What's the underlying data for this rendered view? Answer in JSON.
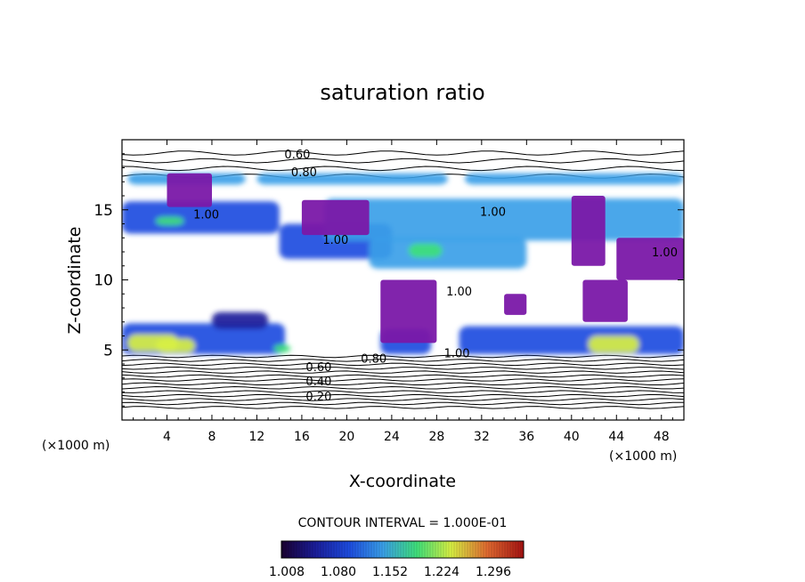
{
  "chart_data": {
    "type": "heatmap",
    "title": "saturation ratio",
    "xlabel": "X-coordinate",
    "ylabel": "Z-coordinate",
    "x_unit": "(×1000 m)",
    "z_unit": "(×1000 m)",
    "xlim": [
      0,
      50
    ],
    "ylim": [
      0,
      20
    ],
    "x_ticks": [
      4,
      8,
      12,
      16,
      20,
      24,
      28,
      32,
      36,
      40,
      44,
      48
    ],
    "y_ticks": [
      5,
      10,
      15
    ],
    "contour_interval_label": "CONTOUR INTERVAL = 1.000E-01",
    "colorbar": {
      "ticks": [
        "1.008",
        "1.080",
        "1.152",
        "1.224",
        "1.296"
      ],
      "range": [
        1.0,
        1.3
      ],
      "colors": [
        "#1a0030",
        "#1b1d9a",
        "#1d4ce0",
        "#3aa0e8",
        "#3fe07a",
        "#d8f043",
        "#e06a30",
        "#a51212"
      ]
    },
    "contour_labels": [
      {
        "text": "0.60",
        "x": 15.6,
        "z": 19.0
      },
      {
        "text": "0.80",
        "x": 16.2,
        "z": 17.7
      },
      {
        "text": "1.00",
        "x": 7.5,
        "z": 14.7
      },
      {
        "text": "1.00",
        "x": 19.0,
        "z": 12.9
      },
      {
        "text": "1.00",
        "x": 33.0,
        "z": 14.9
      },
      {
        "text": "1.00",
        "x": 48.3,
        "z": 12.0
      },
      {
        "text": "1.00",
        "x": 30.0,
        "z": 9.2
      },
      {
        "text": "1.00",
        "x": 29.8,
        "z": 4.8
      },
      {
        "text": "0.60",
        "x": 17.5,
        "z": 3.8
      },
      {
        "text": "0.40",
        "x": 17.5,
        "z": 2.8
      },
      {
        "text": "0.20",
        "x": 17.5,
        "z": 1.7
      },
      {
        "text": "0.80",
        "x": 22.4,
        "z": 4.4
      }
    ],
    "supersaturated_regions": [
      {
        "x": 0.5,
        "z": 16.8,
        "w": 10.5,
        "h": 0.8,
        "v": 1.12
      },
      {
        "x": 12,
        "z": 16.8,
        "w": 17,
        "h": 0.8,
        "v": 1.11
      },
      {
        "x": 30.5,
        "z": 16.8,
        "w": 19.5,
        "h": 0.8,
        "v": 1.13
      },
      {
        "x": 0,
        "z": 13.3,
        "w": 14,
        "h": 2.3,
        "v": 1.1
      },
      {
        "x": 14,
        "z": 11.5,
        "w": 10,
        "h": 2.5,
        "v": 1.09
      },
      {
        "x": 18,
        "z": 12.8,
        "w": 32,
        "h": 3.0,
        "v": 1.11
      },
      {
        "x": 22,
        "z": 10.8,
        "w": 14,
        "h": 2.2,
        "v": 1.12
      },
      {
        "x": 0,
        "z": 4.7,
        "w": 14.5,
        "h": 2.2,
        "v": 1.1
      },
      {
        "x": 23,
        "z": 4.7,
        "w": 4.5,
        "h": 1.8,
        "v": 1.09
      },
      {
        "x": 30,
        "z": 4.7,
        "w": 20,
        "h": 2.0,
        "v": 1.1
      },
      {
        "x": 8,
        "z": 6.5,
        "w": 5,
        "h": 1.2,
        "v": 1.06
      },
      {
        "x": 0.5,
        "z": 4.9,
        "w": 4.5,
        "h": 1.2,
        "v": 1.2
      },
      {
        "x": 3,
        "z": 4.8,
        "w": 3.5,
        "h": 1.0,
        "v": 1.23
      },
      {
        "x": 41.5,
        "z": 4.8,
        "w": 4.5,
        "h": 1.2,
        "v": 1.22
      },
      {
        "x": 25.5,
        "z": 11.6,
        "w": 3,
        "h": 1.0,
        "v": 1.17
      },
      {
        "x": 13.5,
        "z": 4.8,
        "w": 1.5,
        "h": 0.6,
        "v": 1.18
      },
      {
        "x": 3,
        "z": 13.9,
        "w": 2.5,
        "h": 0.6,
        "v": 1.18
      }
    ],
    "near_saturation_regions": [
      {
        "x": 4,
        "z": 15.2,
        "w": 4,
        "h": 2.4,
        "v": 1.0
      },
      {
        "x": 16,
        "z": 13.2,
        "w": 6,
        "h": 2.5,
        "v": 1.0
      },
      {
        "x": 23,
        "z": 5.5,
        "w": 5,
        "h": 4.5,
        "v": 1.0
      },
      {
        "x": 40,
        "z": 11,
        "w": 3,
        "h": 5.0,
        "v": 1.0
      },
      {
        "x": 44,
        "z": 10,
        "w": 6,
        "h": 3.0,
        "v": 1.0
      },
      {
        "x": 41,
        "z": 7,
        "w": 4,
        "h": 3.0,
        "v": 1.0
      },
      {
        "x": 34,
        "z": 7.5,
        "w": 2,
        "h": 1.5,
        "v": 1.0
      }
    ]
  }
}
